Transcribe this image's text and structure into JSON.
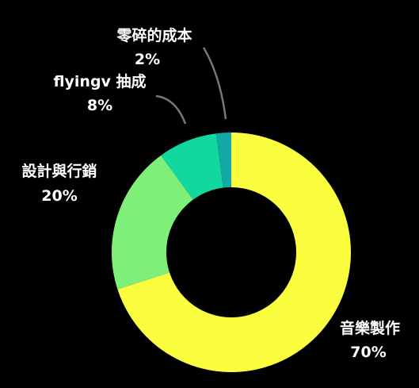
{
  "chart_data": {
    "type": "pie",
    "style": "donut",
    "slices": [
      {
        "label": "音樂製作",
        "value": 70,
        "value_label": "70%",
        "color": "#fbfd3f"
      },
      {
        "label": "設計與行銷",
        "value": 20,
        "value_label": "20%",
        "color": "#7ef079"
      },
      {
        "label": "flyingv 抽成",
        "value": 8,
        "value_label": "8%",
        "color": "#12d79f"
      },
      {
        "label": "零碎的成本",
        "value": 2,
        "value_label": "2%",
        "color": "#13a8a6"
      }
    ],
    "start": "top",
    "direction": "clockwise",
    "background": "#000000",
    "label_color": "#ffffff"
  }
}
